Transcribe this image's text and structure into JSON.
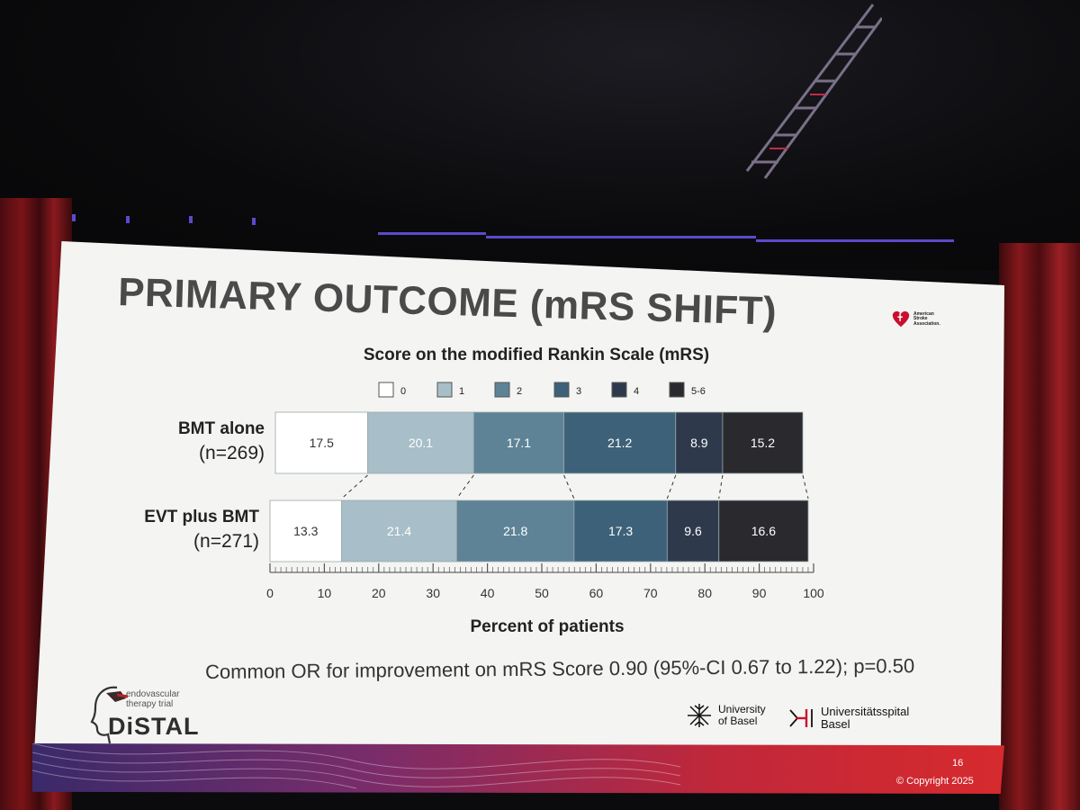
{
  "slide": {
    "title": "PRIMARY OUTCOME (mRS SHIFT)",
    "footnote": "Common OR for improvement on mRS Score 0.90 (95%-CI 0.67 to 1.22); p=0.50",
    "page_number": "16",
    "copyright": "© Copyright 2025"
  },
  "logos": {
    "aha_lines": [
      "American",
      "Stroke",
      "Association."
    ],
    "distal_tagline_1": "endovascular",
    "distal_tagline_2": "therapy trial",
    "distal_name": "DiSTAL",
    "uni_basel_1": "University",
    "uni_basel_2": "of Basel",
    "spital_1": "Universitätsspital",
    "spital_2": "Basel"
  },
  "colors": {
    "mrs0": "#ffffff",
    "mrs1": "#a8bec8",
    "mrs2": "#5e8397",
    "mrs3": "#3d6178",
    "mrs4": "#2e3a4c",
    "mrs56": "#2a2a2e"
  },
  "chart_data": {
    "type": "bar",
    "orientation": "horizontal",
    "stacked": true,
    "title": "Score on the modified Rankin Scale (mRS)",
    "xlabel": "Percent of patients",
    "ylabel": "",
    "xlim": [
      0,
      100
    ],
    "x_ticks": [
      0,
      10,
      20,
      30,
      40,
      50,
      60,
      70,
      80,
      90,
      100
    ],
    "legend_position": "top",
    "legend": [
      "0",
      "1",
      "2",
      "3",
      "4",
      "5-6"
    ],
    "categories": [
      {
        "name": "BMT alone",
        "n": "(n=269)"
      },
      {
        "name": "EVT plus BMT",
        "n": "(n=271)"
      }
    ],
    "series": [
      {
        "name": "0",
        "values": [
          17.5,
          13.3
        ]
      },
      {
        "name": "1",
        "values": [
          20.1,
          21.4
        ]
      },
      {
        "name": "2",
        "values": [
          17.1,
          21.8
        ]
      },
      {
        "name": "3",
        "values": [
          21.2,
          17.3
        ]
      },
      {
        "name": "4",
        "values": [
          8.9,
          9.6
        ]
      },
      {
        "name": "5-6",
        "values": [
          15.2,
          16.6
        ]
      }
    ]
  }
}
